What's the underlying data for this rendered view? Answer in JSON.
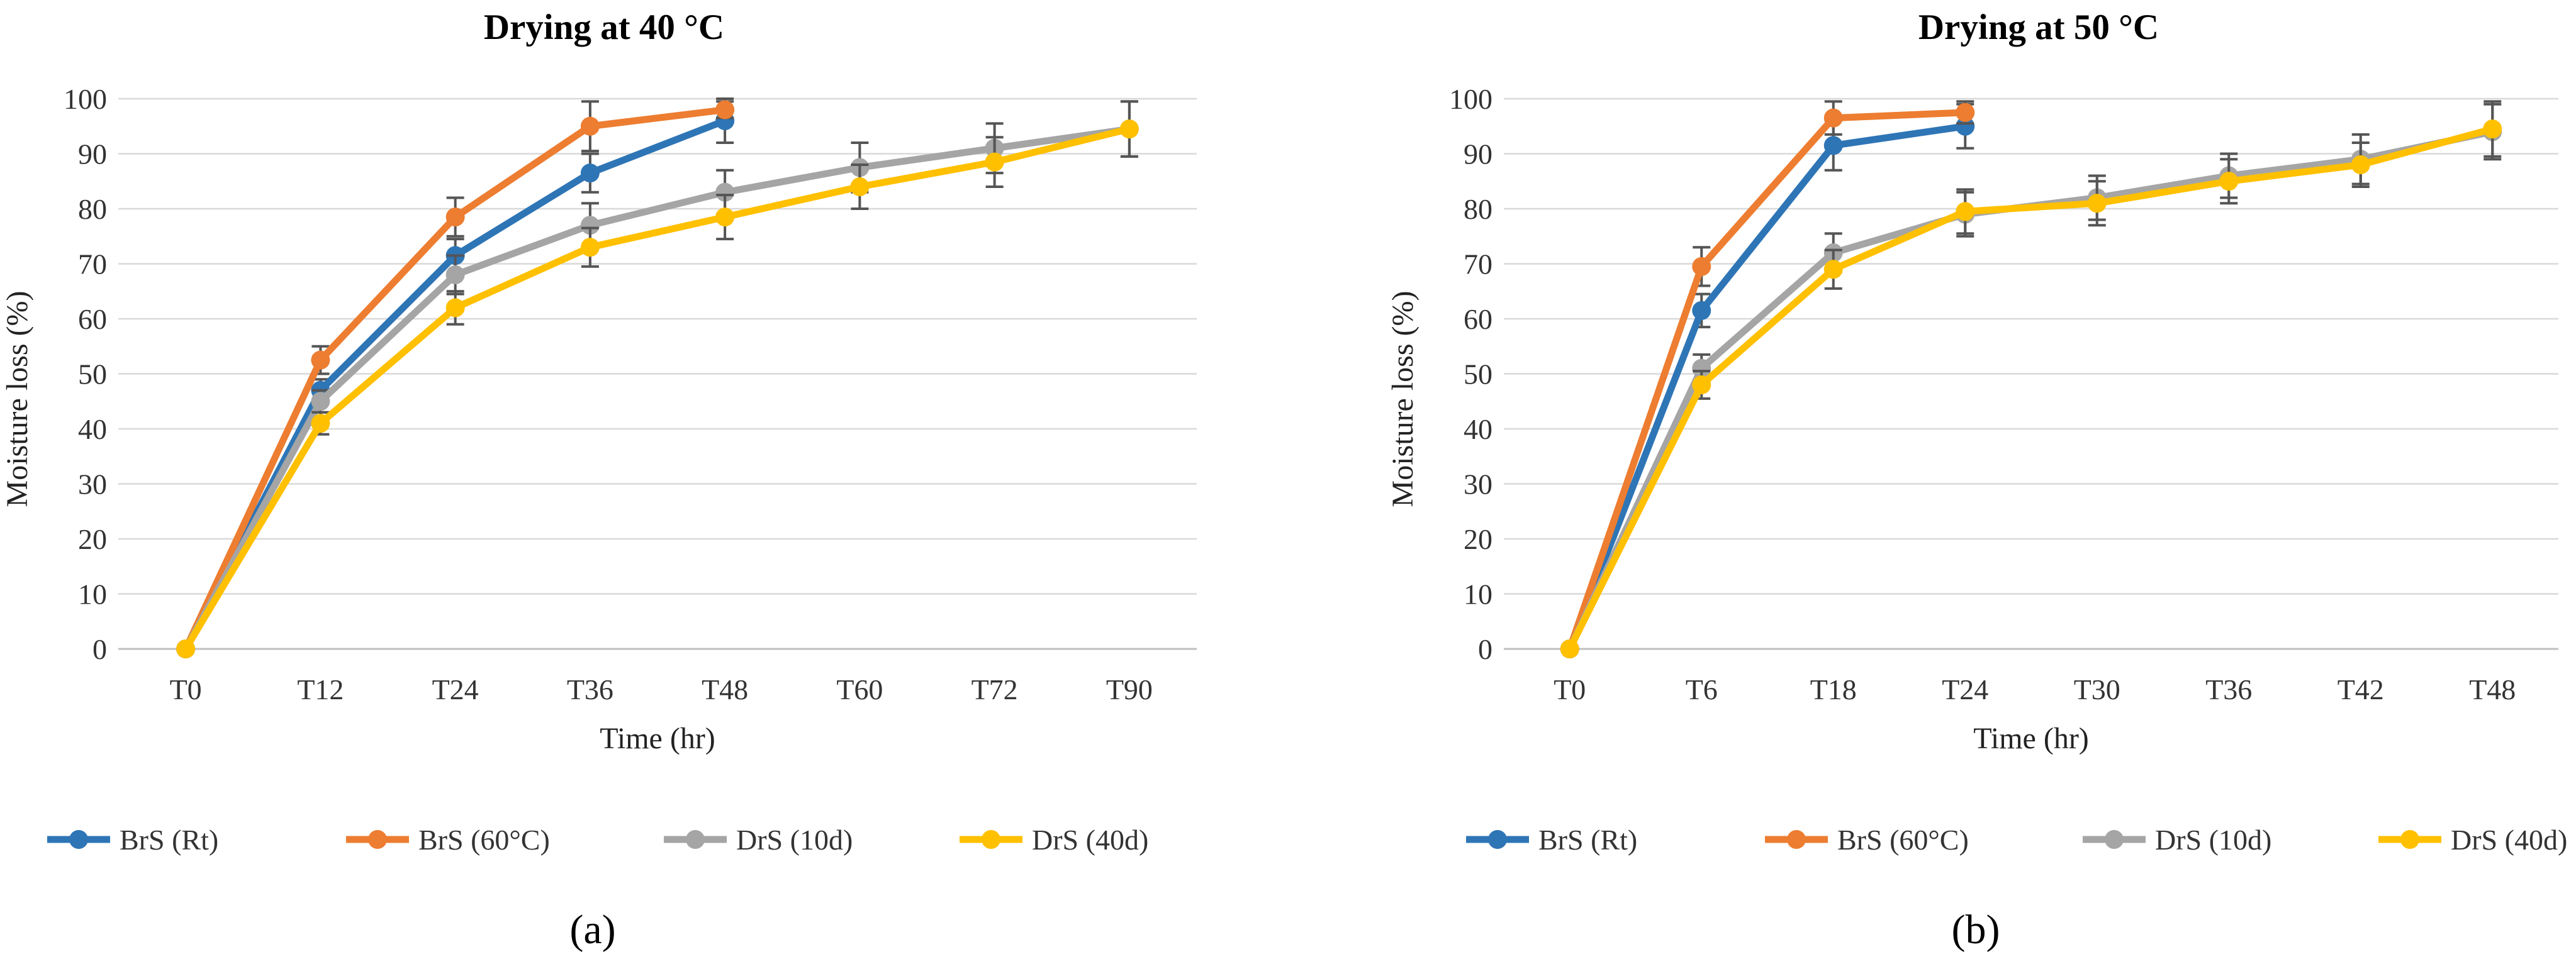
{
  "chart_data": [
    {
      "type": "line",
      "panel_label": "(a)",
      "title": "Drying at 40 °C",
      "xlabel": "Time (hr)",
      "ylabel": "Moisture loss (%)",
      "ylim": [
        0,
        100
      ],
      "yticks": [
        0,
        10,
        20,
        30,
        40,
        50,
        60,
        70,
        80,
        90,
        100
      ],
      "categories": [
        "T0",
        "T12",
        "T24",
        "T36",
        "T48",
        "T60",
        "T72",
        "T90"
      ],
      "grid": true,
      "legend": "bottom",
      "series": [
        {
          "name": "BrS (Rt)",
          "color": "#2E75B6",
          "values": [
            0,
            47,
            71.5,
            86.5,
            96,
            null,
            null,
            null
          ],
          "errors": [
            0,
            2,
            3,
            3.5,
            4,
            null,
            null,
            null
          ]
        },
        {
          "name": "BrS (60°C)",
          "color": "#ED7D31",
          "values": [
            0,
            52.5,
            78.5,
            95,
            98,
            null,
            null,
            null
          ],
          "errors": [
            0,
            2.5,
            3.5,
            4.5,
            1.5,
            null,
            null,
            null
          ]
        },
        {
          "name": "DrS (10d)",
          "color": "#A5A5A5",
          "values": [
            0,
            45,
            68,
            77,
            83,
            87.5,
            91,
            94.5
          ],
          "errors": [
            0,
            2,
            3.5,
            4,
            4,
            4.5,
            4.5,
            5
          ]
        },
        {
          "name": "DrS (40d)",
          "color": "#FFC000",
          "values": [
            0,
            41,
            62,
            73,
            78.5,
            84,
            88.5,
            94.5
          ],
          "errors": [
            0,
            2,
            3,
            3.5,
            4,
            4,
            4.5,
            5
          ]
        }
      ]
    },
    {
      "type": "line",
      "panel_label": "(b)",
      "title": "Drying at 50 °C",
      "xlabel": "Time (hr)",
      "ylabel": "Moisture loss (%)",
      "ylim": [
        0,
        100
      ],
      "yticks": [
        0,
        10,
        20,
        30,
        40,
        50,
        60,
        70,
        80,
        90,
        100
      ],
      "categories": [
        "T0",
        "T6",
        "T18",
        "T24",
        "T30",
        "T36",
        "T42",
        "T48"
      ],
      "grid": true,
      "legend": "bottom",
      "series": [
        {
          "name": "BrS (Rt)",
          "color": "#2E75B6",
          "values": [
            0,
            61.5,
            91.5,
            95,
            null,
            null,
            null,
            null
          ],
          "errors": [
            0,
            3,
            4.5,
            4,
            null,
            null,
            null,
            null
          ]
        },
        {
          "name": "BrS (60°C)",
          "color": "#ED7D31",
          "values": [
            0,
            69.5,
            96.5,
            97.5,
            null,
            null,
            null,
            null
          ],
          "errors": [
            0,
            3.5,
            3,
            2,
            null,
            null,
            null,
            null
          ]
        },
        {
          "name": "DrS (10d)",
          "color": "#A5A5A5",
          "values": [
            0,
            51,
            72,
            79,
            82,
            86,
            89,
            94
          ],
          "errors": [
            0,
            2.5,
            3.5,
            4,
            4,
            4,
            4.5,
            5
          ]
        },
        {
          "name": "DrS (40d)",
          "color": "#FFC000",
          "values": [
            0,
            48,
            69,
            79.5,
            81,
            85,
            88,
            94.5
          ],
          "errors": [
            0,
            2.5,
            3.5,
            4,
            4,
            4,
            4,
            5
          ]
        }
      ]
    }
  ]
}
